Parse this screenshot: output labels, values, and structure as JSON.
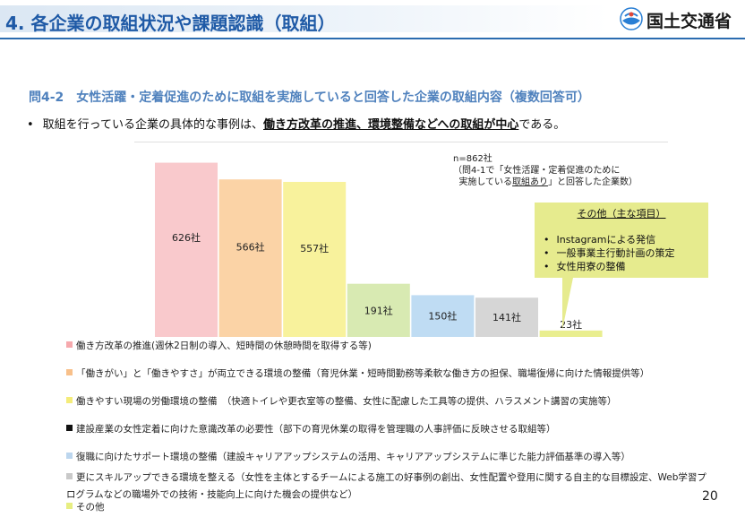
{
  "header": {
    "title": "4. 各企業の取組状況や課題認識（取組）",
    "logo_text": "国土交通省"
  },
  "question": {
    "text": "問4-2　女性活躍・定着促進のために取組を実施していると回答した企業の取組内容（複数回答可）"
  },
  "summary": {
    "before": "取組を行っている企業の具体的な事例は、",
    "emphasis": "働き方改革の推進、環境整備などへの取組が中心",
    "after": "である。"
  },
  "note": {
    "line1": "n=862社",
    "line2": "（問4-1で「女性活躍・定着促進のために",
    "line3a": "実施している",
    "line3u": "取組あり",
    "line3b": "」と回答した企業数）"
  },
  "other_box": {
    "title": "その他（主な項目）",
    "items": [
      "Instagramによる発信",
      "一般事業主行動計画の策定",
      "女性用寮の整備"
    ]
  },
  "chart_data": {
    "type": "bar",
    "categories": [
      "働き方改革の推進(週休2日制の導入、短時間の休憩時間を取得する等)",
      "「働きがい」と「働きやすさ」が両立できる環境の整備（育児休業・短時間勤務等柔軟な働き方の担保、職場復帰に向けた情報提供等）",
      "働きやすい現場の労働環境の整備　（快適トイレや更衣室等の整備、女性に配慮した工具等の提供、ハラスメント講習の実施等）",
      "建設産業の女性定着に向けた意識改革の必要性（部下の育児休業の取得を管理職の人事評価に反映させる取組等）",
      "復職に向けたサポート環境の整備（建設キャリアアップシステムの活用、キャリアアップシステムに準じた能力評価基準の導入等）",
      "更にスキルアップできる環境を整える（女性を主体とするチームによる施工の好事例の創出、女性配置や登用に関する自主的な目標設定、Web学習プログラムなどの職場外での技術・技能向上に向けた機会の提供など）",
      "その他"
    ],
    "values": [
      626,
      566,
      557,
      191,
      150,
      141,
      23
    ],
    "labels": [
      "626社",
      "566社",
      "557社",
      "191社",
      "150社",
      "141社",
      "23社"
    ],
    "colors": [
      "#f9c9cc",
      "#fbd3a6",
      "#f8f29c",
      "#d8eab2",
      "#bfdcf3",
      "#d6d6d6",
      "#e9ee8f"
    ],
    "legend_colors": [
      "#f6a9ad",
      "#f8c08a",
      "#f4ec7a",
      "#111111",
      "#bcd6ee",
      "#c9c9c9",
      "#e7ee82"
    ],
    "ylim": [
      0,
      660
    ],
    "legend_position": "bottom"
  },
  "page_number": "20"
}
